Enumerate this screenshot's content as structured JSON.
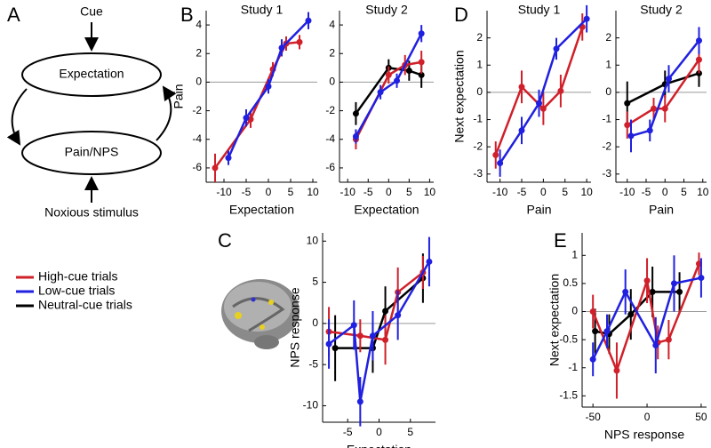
{
  "panel_labels": [
    "A",
    "B",
    "C",
    "D",
    "E"
  ],
  "diagram": {
    "input_top": "Cue",
    "node_top": "Expectation",
    "node_bottom": "Pain/NPS",
    "input_bottom": "Noxious stimulus"
  },
  "chart_data": [
    {
      "type": "line",
      "title": "Study 1",
      "xlabel": "Expectation",
      "ylabel": "Pain",
      "xlim": [
        -14,
        11
      ],
      "xticks": [
        -10,
        -5,
        0,
        5,
        10
      ],
      "ylim": [
        -7,
        5
      ],
      "yticks": [
        -6,
        -4,
        -2,
        0,
        2,
        4
      ],
      "reference_line": 0,
      "series": [
        {
          "color": "#d0202a",
          "x": [
            -12,
            -4,
            1,
            4,
            7
          ],
          "values": [
            -6,
            -2.6,
            0.9,
            2.7,
            2.8
          ],
          "errors": [
            1.0,
            0.6,
            0.5,
            0.5,
            0.5
          ]
        },
        {
          "color": "#2020e0",
          "x": [
            -9,
            -5,
            0,
            3,
            9
          ],
          "values": [
            -5.3,
            -2.5,
            -0.3,
            2.4,
            4.3
          ],
          "errors": [
            0.5,
            0.6,
            0.5,
            0.6,
            0.6
          ]
        }
      ]
    },
    {
      "type": "line",
      "title": "Study 2",
      "xlabel": "Expectation",
      "xlim": [
        -12,
        11
      ],
      "xticks": [
        -10,
        -5,
        0,
        5,
        10
      ],
      "ylim": [
        -7,
        5
      ],
      "yticks": [
        -6,
        -4,
        -2,
        0,
        2,
        4
      ],
      "reference_line": 0,
      "series": [
        {
          "color": "#000000",
          "x": [
            -8,
            0,
            5,
            8
          ],
          "values": [
            -2.2,
            1.0,
            0.8,
            0.5
          ],
          "errors": [
            0.8,
            0.6,
            0.7,
            0.9
          ]
        },
        {
          "color": "#d0202a",
          "x": [
            -8,
            0,
            4,
            8
          ],
          "values": [
            -4,
            0.5,
            1.2,
            1.4
          ],
          "errors": [
            0.7,
            0.6,
            0.7,
            0.8
          ]
        },
        {
          "color": "#2020e0",
          "x": [
            -8,
            -2,
            2,
            8
          ],
          "values": [
            -3.8,
            -0.7,
            0.1,
            3.4
          ],
          "errors": [
            0.5,
            0.5,
            0.5,
            0.6
          ]
        }
      ]
    },
    {
      "type": "line",
      "title": "Study 1",
      "xlabel": "Pain",
      "ylabel": "Next expectation",
      "xlim": [
        -13,
        11
      ],
      "xticks": [
        -10,
        -5,
        0,
        5,
        10
      ],
      "ylim": [
        -3.3,
        3
      ],
      "yticks": [
        -3,
        -2,
        -1,
        0,
        1,
        2
      ],
      "reference_line": 0,
      "series": [
        {
          "color": "#d0202a",
          "x": [
            -11,
            -5,
            0,
            4,
            9
          ],
          "values": [
            -2.3,
            0.2,
            -0.6,
            0.05,
            2.4
          ],
          "errors": [
            0.5,
            0.6,
            0.6,
            0.6,
            0.5
          ]
        },
        {
          "color": "#2020e0",
          "x": [
            -10,
            -5,
            -1,
            3,
            10
          ],
          "values": [
            -2.6,
            -1.4,
            -0.4,
            1.6,
            2.7
          ],
          "errors": [
            0.5,
            0.5,
            0.5,
            0.4,
            0.5
          ]
        }
      ]
    },
    {
      "type": "line",
      "title": "Study 2",
      "xlabel": "Pain",
      "xlim": [
        -13,
        11
      ],
      "xticks": [
        -10,
        -5,
        0,
        5,
        10
      ],
      "ylim": [
        -3.3,
        3
      ],
      "yticks": [
        -3,
        -2,
        -1,
        0,
        1,
        2
      ],
      "reference_line": 0,
      "series": [
        {
          "color": "#000000",
          "x": [
            -10,
            0,
            9
          ],
          "values": [
            -0.4,
            0.3,
            0.7
          ],
          "errors": [
            0.8,
            0.5,
            0.5
          ]
        },
        {
          "color": "#d0202a",
          "x": [
            -10,
            -3,
            0,
            9
          ],
          "values": [
            -1.2,
            -0.6,
            -0.6,
            1.2
          ],
          "errors": [
            0.5,
            0.4,
            0.5,
            0.5
          ]
        },
        {
          "color": "#2020e0",
          "x": [
            -9,
            -4,
            1,
            9
          ],
          "values": [
            -1.6,
            -1.4,
            0.5,
            1.9
          ],
          "errors": [
            0.6,
            0.4,
            0.5,
            0.5
          ]
        }
      ]
    },
    {
      "type": "line",
      "xlabel": "Expectation",
      "ylabel": "NPS response",
      "xlim": [
        -9,
        9
      ],
      "xticks": [
        -5,
        0,
        5
      ],
      "ylim": [
        -12,
        11
      ],
      "yticks": [
        -10,
        -5,
        0,
        5,
        10
      ],
      "reference_line": 0,
      "series": [
        {
          "name": "Neutral-cue trials",
          "color": "#000000",
          "x": [
            -7,
            -1,
            1,
            7
          ],
          "values": [
            -3,
            -3,
            1.5,
            5.5
          ],
          "errors": [
            4,
            3,
            3,
            3
          ]
        },
        {
          "name": "High-cue trials",
          "color": "#d0202a",
          "x": [
            -8,
            -3,
            1,
            3,
            7
          ],
          "values": [
            -1,
            -1.5,
            -2,
            3.8,
            6.2
          ],
          "errors": [
            3,
            2,
            3,
            3,
            2
          ]
        },
        {
          "name": "Low-cue trials",
          "color": "#2020e0",
          "x": [
            -8,
            -4,
            -3,
            -1,
            3,
            8
          ],
          "values": [
            -2.5,
            -0.2,
            -9.5,
            -1.5,
            1,
            7.5
          ],
          "errors": [
            3,
            3,
            3,
            3,
            3,
            3
          ]
        }
      ],
      "legend_order": [
        1,
        2,
        0
      ]
    },
    {
      "type": "line",
      "xlabel": "NPS response",
      "ylabel": "Next expectation",
      "xlim": [
        -60,
        55
      ],
      "xticks": [
        -50,
        0,
        50
      ],
      "ylim": [
        -1.7,
        1.4
      ],
      "yticks": [
        -1.5,
        -1,
        -0.5,
        0,
        0.5,
        1
      ],
      "reference_line": 0,
      "series": [
        {
          "color": "#000000",
          "x": [
            -48,
            -35,
            -15,
            5,
            30
          ],
          "values": [
            -0.35,
            -0.4,
            -0.05,
            0.35,
            0.35
          ],
          "errors": [
            0.4,
            0.35,
            0.45,
            0.45,
            0.35
          ]
        },
        {
          "color": "#d0202a",
          "x": [
            -50,
            -28,
            0,
            10,
            20,
            48
          ],
          "values": [
            0,
            -1.05,
            0.55,
            -0.55,
            -0.5,
            0.85
          ],
          "errors": [
            0.3,
            0.5,
            0.4,
            0.3,
            0.35,
            0.2
          ]
        },
        {
          "color": "#2020e0",
          "x": [
            -50,
            -37,
            -20,
            8,
            25,
            50
          ],
          "values": [
            -0.85,
            -0.35,
            0.35,
            -0.6,
            0.5,
            0.6
          ],
          "errors": [
            0.3,
            0.3,
            0.4,
            0.5,
            0.5,
            0.35
          ]
        }
      ]
    }
  ]
}
